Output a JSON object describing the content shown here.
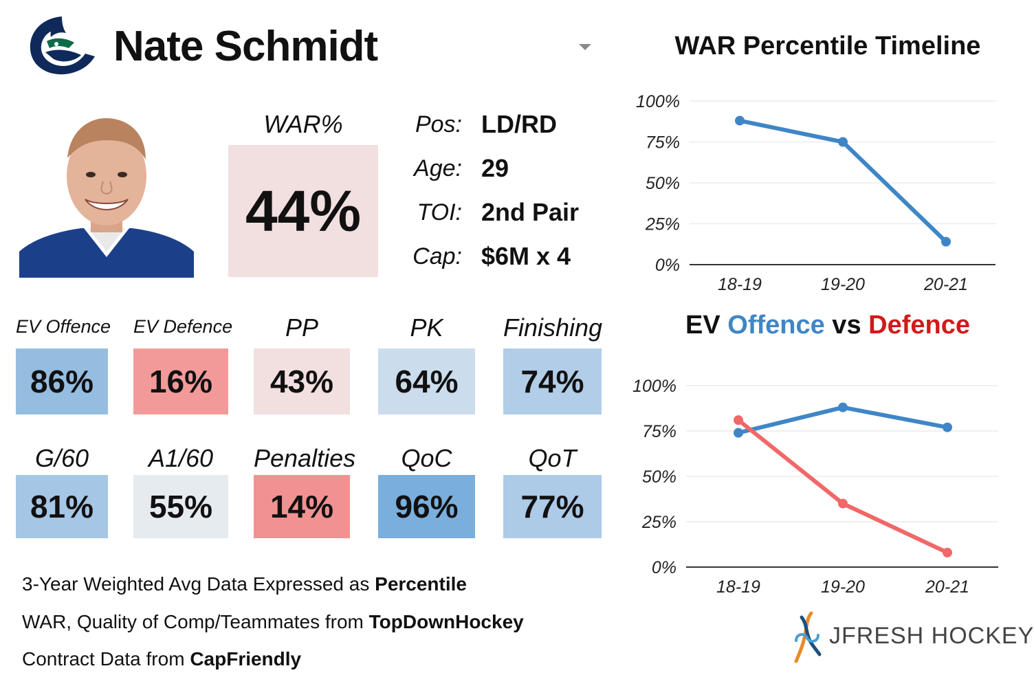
{
  "header": {
    "player_name": "Nate Schmidt",
    "team_logo_icon": "canucks-orca-logo-icon",
    "dropdown_icon": "caret-down-icon"
  },
  "war": {
    "label": "WAR%",
    "value": "44%"
  },
  "info": [
    {
      "label": "Pos:",
      "value": "LD/RD"
    },
    {
      "label": "Age:",
      "value": "29"
    },
    {
      "label": "TOI:",
      "value": "2nd Pair"
    },
    {
      "label": "Cap:",
      "value": "$6M x 4"
    }
  ],
  "stats_row1": [
    {
      "label": "EV Offence",
      "value": "86%",
      "color": "#95bde0"
    },
    {
      "label": "EV Defence",
      "value": "16%",
      "color": "#f29a9a"
    },
    {
      "label": "PP",
      "value": "43%",
      "color": "#f2dfe0"
    },
    {
      "label": "PK",
      "value": "64%",
      "color": "#cbdcec"
    },
    {
      "label": "Finishing",
      "value": "74%",
      "color": "#b2cde8"
    }
  ],
  "stats_row2": [
    {
      "label": "G/60",
      "value": "81%",
      "color": "#a6c6e6"
    },
    {
      "label": "A1/60",
      "value": "55%",
      "color": "#e6ebf0"
    },
    {
      "label": "Penalties",
      "value": "14%",
      "color": "#f29191"
    },
    {
      "label": "QoC",
      "value": "96%",
      "color": "#7aaedc"
    },
    {
      "label": "QoT",
      "value": "77%",
      "color": "#adcae7"
    }
  ],
  "footnotes": [
    {
      "text": "3-Year Weighted Avg Data Expressed as ",
      "bold": "Percentile"
    },
    {
      "text": "WAR, Quality of Comp/Teammates from ",
      "bold": "TopDownHockey"
    },
    {
      "text": "Contract Data from ",
      "bold": "CapFriendly"
    }
  ],
  "brand": {
    "text": "JFRESH HOCKEY",
    "icon": "jfresh-hockey-logo-icon"
  },
  "chart_data": [
    {
      "type": "line",
      "title": "WAR Percentile Timeline",
      "categories": [
        "18-19",
        "19-20",
        "20-21"
      ],
      "series": [
        {
          "values": [
            88,
            75,
            14
          ],
          "color": "#3f86c6"
        }
      ],
      "ylim": [
        0,
        100
      ],
      "yticks": [
        "0%",
        "25%",
        "50%",
        "75%",
        "100%"
      ],
      "grid": true
    },
    {
      "type": "line",
      "title": "EV Offence vs Defence",
      "title_parts": [
        "EV ",
        "Offence",
        " vs ",
        "Defence"
      ],
      "categories": [
        "18-19",
        "19-20",
        "20-21"
      ],
      "series": [
        {
          "name": "Offence",
          "values": [
            74,
            88,
            77
          ],
          "color": "#3f86c6"
        },
        {
          "name": "Defence",
          "values": [
            81,
            35,
            8
          ],
          "color": "#f06868"
        }
      ],
      "ylim": [
        0,
        100
      ],
      "yticks": [
        "0%",
        "25%",
        "50%",
        "75%",
        "100%"
      ],
      "grid": true
    }
  ]
}
